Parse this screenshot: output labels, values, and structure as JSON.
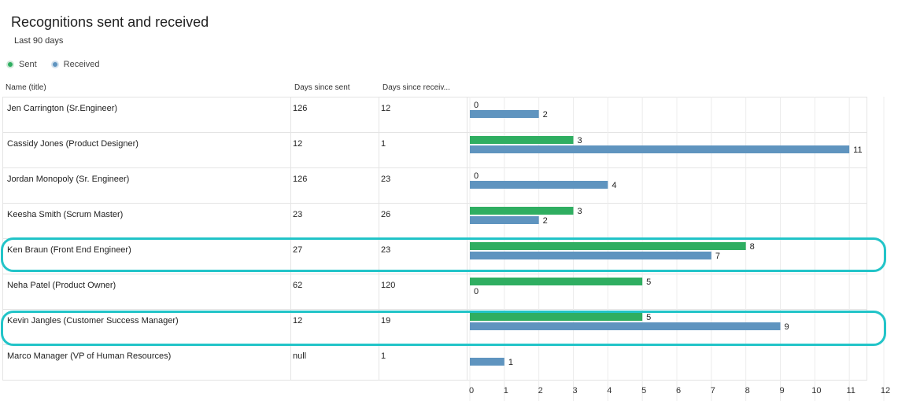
{
  "header": {
    "title": "Recognitions sent and received",
    "subtitle": "Last 90 days"
  },
  "legend": {
    "sent": "Sent",
    "received": "Received"
  },
  "columns": {
    "name": "Name (title)",
    "days_sent": "Days since sent",
    "days_received": "Days since receiv..."
  },
  "colors": {
    "sent": "#2fae61",
    "received": "#5f94bf",
    "highlight": "#22c4c8"
  },
  "rows": [
    {
      "name": "Jen Carrington (Sr.Engineer)",
      "days_sent": "126",
      "days_received": "12"
    },
    {
      "name": "Cassidy Jones (Product Designer)",
      "days_sent": "12",
      "days_received": "1"
    },
    {
      "name": "Jordan Monopoly (Sr. Engineer)",
      "days_sent": "126",
      "days_received": "23"
    },
    {
      "name": "Keesha Smith (Scrum Master)",
      "days_sent": "23",
      "days_received": "26"
    },
    {
      "name": "Ken Braun (Front End Engineer)",
      "days_sent": "27",
      "days_received": "23"
    },
    {
      "name": "Neha Patel (Product Owner)",
      "days_sent": "62",
      "days_received": "120"
    },
    {
      "name": "Kevin Jangles (Customer Success Manager)",
      "days_sent": "12",
      "days_received": "19"
    },
    {
      "name": "Marco Manager (VP of Human Resources)",
      "days_sent": "null",
      "days_received": "1"
    }
  ],
  "chart_data": {
    "type": "bar",
    "orientation": "horizontal",
    "categories": [
      "Jen Carrington (Sr.Engineer)",
      "Cassidy Jones (Product Designer)",
      "Jordan Monopoly (Sr. Engineer)",
      "Keesha Smith (Scrum Master)",
      "Ken Braun (Front End Engineer)",
      "Neha Patel (Product Owner)",
      "Kevin Jangles (Customer Success Manager)",
      "Marco Manager (VP of Human Resources)"
    ],
    "series": [
      {
        "name": "Sent",
        "values": [
          0,
          3,
          0,
          3,
          8,
          5,
          5,
          null
        ]
      },
      {
        "name": "Received",
        "values": [
          2,
          11,
          4,
          2,
          7,
          0,
          9,
          1
        ]
      }
    ],
    "xlim": [
      0,
      12
    ],
    "xticks": [
      0,
      1,
      2,
      3,
      4,
      5,
      6,
      7,
      8,
      9,
      10,
      11,
      12
    ],
    "grid": true,
    "legend_position": "top-left",
    "highlighted_rows": [
      4,
      6
    ]
  }
}
